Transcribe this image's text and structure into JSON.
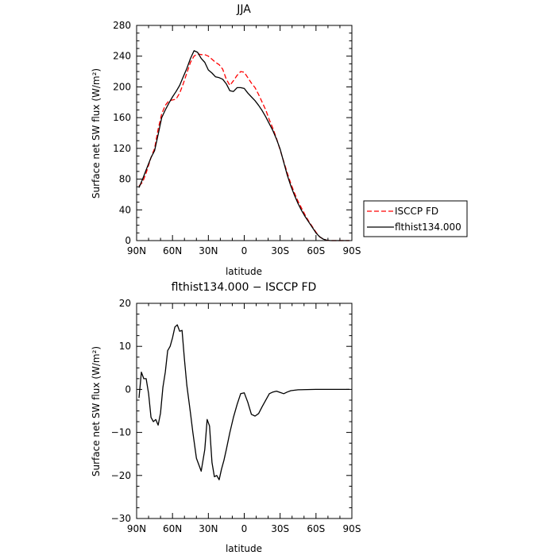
{
  "chart_data": [
    {
      "type": "line",
      "title": "JJA",
      "xlabel": "latitude",
      "ylabel": "Surface net SW flux (W/m²)",
      "xlim": [
        90,
        -90
      ],
      "ylim": [
        0,
        280
      ],
      "xticks": [
        {
          "value": 90,
          "label": "90N"
        },
        {
          "value": 60,
          "label": "60N"
        },
        {
          "value": 30,
          "label": "30N"
        },
        {
          "value": 0,
          "label": "0"
        },
        {
          "value": -30,
          "label": "30S"
        },
        {
          "value": -60,
          "label": "60S"
        },
        {
          "value": -90,
          "label": "90S"
        }
      ],
      "yticks": [
        {
          "value": 0,
          "label": "0"
        },
        {
          "value": 40,
          "label": "40"
        },
        {
          "value": 80,
          "label": "80"
        },
        {
          "value": 120,
          "label": "120"
        },
        {
          "value": 160,
          "label": "160"
        },
        {
          "value": 200,
          "label": "200"
        },
        {
          "value": 240,
          "label": "240"
        },
        {
          "value": 280,
          "label": "280"
        }
      ],
      "legend": {
        "placement": "right-outside"
      },
      "series": [
        {
          "name": "ISCCP FD",
          "color": "#ff0000",
          "dash": "dashed",
          "points": [
            [
              88,
              71
            ],
            [
              85,
              76
            ],
            [
              82,
              88
            ],
            [
              78,
              108
            ],
            [
              75,
              120
            ],
            [
              72,
              145
            ],
            [
              69,
              165
            ],
            [
              66,
              176
            ],
            [
              63,
              182
            ],
            [
              60,
              183
            ],
            [
              57,
              184
            ],
            [
              54,
              192
            ],
            [
              51,
              204
            ],
            [
              48,
              218
            ],
            [
              45,
              232
            ],
            [
              42,
              240
            ],
            [
              39,
              243
            ],
            [
              36,
              242
            ],
            [
              33,
              242
            ],
            [
              30,
              240
            ],
            [
              27,
              236
            ],
            [
              24,
              232
            ],
            [
              21,
              229
            ],
            [
              18,
              223
            ],
            [
              15,
              210
            ],
            [
              12,
              202
            ],
            [
              9,
              208
            ],
            [
              6,
              215
            ],
            [
              3,
              220
            ],
            [
              0,
              219
            ],
            [
              -3,
              212
            ],
            [
              -6,
              205
            ],
            [
              -9,
              199
            ],
            [
              -12,
              190
            ],
            [
              -15,
              180
            ],
            [
              -18,
              170
            ],
            [
              -21,
              157
            ],
            [
              -24,
              146
            ],
            [
              -27,
              133
            ],
            [
              -30,
              118
            ],
            [
              -33,
              103
            ],
            [
              -36,
              88
            ],
            [
              -39,
              74
            ],
            [
              -42,
              62
            ],
            [
              -45,
              51
            ],
            [
              -48,
              42
            ],
            [
              -51,
              33
            ],
            [
              -54,
              25
            ],
            [
              -57,
              18
            ],
            [
              -60,
              11
            ],
            [
              -63,
              5
            ],
            [
              -66,
              2
            ],
            [
              -69,
              0.5
            ],
            [
              -72,
              0
            ],
            [
              -78,
              0
            ],
            [
              -84,
              0
            ],
            [
              -88,
              0
            ]
          ]
        },
        {
          "name": "flthist134.000",
          "color": "#000000",
          "dash": "solid",
          "points": [
            [
              88,
              69
            ],
            [
              85,
              80
            ],
            [
              82,
              92
            ],
            [
              78,
              108
            ],
            [
              75,
              117
            ],
            [
              72,
              138
            ],
            [
              69,
              160
            ],
            [
              66,
              170
            ],
            [
              63,
              179
            ],
            [
              60,
              187
            ],
            [
              57,
              194
            ],
            [
              54,
              202
            ],
            [
              51,
              213
            ],
            [
              48,
              224
            ],
            [
              45,
              237
            ],
            [
              42,
              247
            ],
            [
              39,
              245
            ],
            [
              36,
              237
            ],
            [
              33,
              232
            ],
            [
              30,
              222
            ],
            [
              27,
              218
            ],
            [
              24,
              213
            ],
            [
              21,
              212
            ],
            [
              18,
              210
            ],
            [
              15,
              204
            ],
            [
              12,
              195
            ],
            [
              9,
              194
            ],
            [
              6,
              199
            ],
            [
              3,
              199
            ],
            [
              0,
              198
            ],
            [
              -3,
              192
            ],
            [
              -6,
              187
            ],
            [
              -9,
              182
            ],
            [
              -12,
              176
            ],
            [
              -15,
              169
            ],
            [
              -18,
              161
            ],
            [
              -21,
              152
            ],
            [
              -24,
              143
            ],
            [
              -27,
              132
            ],
            [
              -30,
              119
            ],
            [
              -33,
              102
            ],
            [
              -36,
              85
            ],
            [
              -39,
              71
            ],
            [
              -42,
              59
            ],
            [
              -45,
              48
            ],
            [
              -48,
              39
            ],
            [
              -51,
              31
            ],
            [
              -54,
              24
            ],
            [
              -57,
              17
            ],
            [
              -60,
              10
            ],
            [
              -63,
              5
            ],
            [
              -66,
              2
            ],
            [
              -69,
              0.5
            ],
            [
              -72,
              0
            ],
            [
              -78,
              0
            ],
            [
              -84,
              0
            ],
            [
              -88,
              0
            ]
          ]
        }
      ]
    },
    {
      "type": "line",
      "title": "flthist134.000 − ISCCP FD",
      "xlabel": "latitude",
      "ylabel": "Surface net SW flux (W/m²)",
      "xlim": [
        90,
        -90
      ],
      "ylim": [
        -30,
        20
      ],
      "xticks": [
        {
          "value": 90,
          "label": "90N"
        },
        {
          "value": 60,
          "label": "60N"
        },
        {
          "value": 30,
          "label": "30N"
        },
        {
          "value": 0,
          "label": "0"
        },
        {
          "value": -30,
          "label": "30S"
        },
        {
          "value": -60,
          "label": "60S"
        },
        {
          "value": -90,
          "label": "90S"
        }
      ],
      "yticks": [
        {
          "value": -30,
          "label": "−30"
        },
        {
          "value": -20,
          "label": "−20"
        },
        {
          "value": -10,
          "label": "−10"
        },
        {
          "value": 0,
          "label": "0"
        },
        {
          "value": 10,
          "label": "10"
        },
        {
          "value": 20,
          "label": "20"
        }
      ],
      "series": [
        {
          "color": "#000000",
          "dash": "solid",
          "points": [
            [
              88,
              -2
            ],
            [
              86,
              4
            ],
            [
              84,
              2.5
            ],
            [
              82,
              2.5
            ],
            [
              80,
              -1
            ],
            [
              78,
              -6.5
            ],
            [
              76,
              -7.5
            ],
            [
              74,
              -7
            ],
            [
              72,
              -8.3
            ],
            [
              70,
              -5.5
            ],
            [
              68,
              0.5
            ],
            [
              66,
              4
            ],
            [
              64,
              9
            ],
            [
              62,
              10
            ],
            [
              60,
              12
            ],
            [
              58,
              14.5
            ],
            [
              56,
              15
            ],
            [
              54,
              13.5
            ],
            [
              52,
              13.7
            ],
            [
              50,
              7
            ],
            [
              48,
              1
            ],
            [
              45,
              -5.5
            ],
            [
              43,
              -10
            ],
            [
              40,
              -16
            ],
            [
              36,
              -19
            ],
            [
              33,
              -14
            ],
            [
              31,
              -7
            ],
            [
              29,
              -8.5
            ],
            [
              27,
              -17
            ],
            [
              25,
              -20.3
            ],
            [
              23,
              -20
            ],
            [
              21,
              -21
            ],
            [
              19,
              -18.5
            ],
            [
              17,
              -16.5
            ],
            [
              15,
              -14
            ],
            [
              12,
              -10
            ],
            [
              9,
              -6.5
            ],
            [
              6,
              -3.5
            ],
            [
              3,
              -1
            ],
            [
              0,
              -0.8
            ],
            [
              -3,
              -3
            ],
            [
              -6,
              -5.8
            ],
            [
              -9,
              -6.2
            ],
            [
              -12,
              -5.6
            ],
            [
              -15,
              -4
            ],
            [
              -18,
              -2.5
            ],
            [
              -21,
              -1
            ],
            [
              -24,
              -0.6
            ],
            [
              -27,
              -0.4
            ],
            [
              -30,
              -0.7
            ],
            [
              -33,
              -1
            ],
            [
              -36,
              -0.6
            ],
            [
              -39,
              -0.3
            ],
            [
              -45,
              -0.1
            ],
            [
              -60,
              0
            ],
            [
              -75,
              0
            ],
            [
              -88,
              0
            ]
          ]
        }
      ]
    }
  ]
}
